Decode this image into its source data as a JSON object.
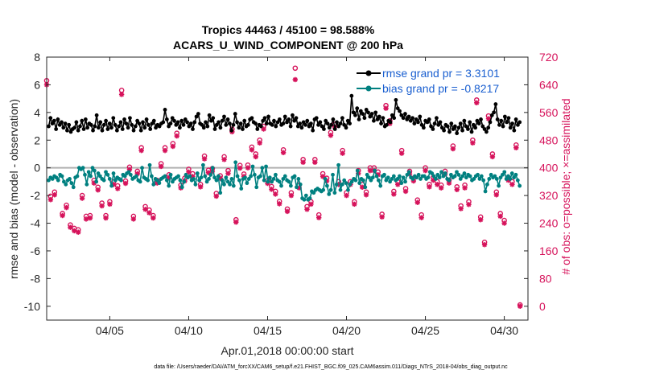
{
  "chart_data": {
    "type": "line",
    "title_line1": "Tropics 44463 / 45100 = 98.588%",
    "title_line2": "ACARS_U_WIND_COMPONENT @ 200 hPa",
    "xlabel": "Apr.01,2018 00:00:00 start",
    "ylabel_left": "rmse and bias (model - observation)",
    "ylabel_right": "# of obs: o=possible; ×=assimilated",
    "footer": "data file: /Users/raeder/DAI/ATM_forcXX/CAM6_setup/f.e21.FHIST_BGC.f09_025.CAM6assim.011/Diags_NTrS_2018-04/obs_diag_output.nc",
    "xlim": [
      1,
      31.5
    ],
    "ylim_left": [
      -11,
      8
    ],
    "ylim_right": [
      -40,
      720
    ],
    "xticks": [
      5,
      10,
      15,
      20,
      25,
      30
    ],
    "xtick_labels": [
      "04/05",
      "04/10",
      "04/15",
      "04/20",
      "04/25",
      "04/30"
    ],
    "yticks_left": [
      -10,
      -8,
      -6,
      -4,
      -2,
      0,
      2,
      4,
      6,
      8
    ],
    "yticks_right": [
      0,
      80,
      160,
      240,
      320,
      400,
      480,
      560,
      640,
      720
    ],
    "colors": {
      "rmse": "#000000",
      "bias": "#008080",
      "obs": "#d6135b",
      "zero_line": "#b0b0b0",
      "legend_text": "#1a5fd0"
    },
    "legend": [
      {
        "name": "rmse grand pr = 3.3101",
        "series": "rmse"
      },
      {
        "name": "bias grand pr = -0.8217",
        "series": "bias"
      }
    ],
    "rmse": [
      3.0,
      3.6,
      3.2,
      3.4,
      2.8,
      3.5,
      3.1,
      3.3,
      2.9,
      3.2,
      2.7,
      3.1,
      2.6,
      2.8,
      2.9,
      3.3,
      2.7,
      3.0,
      3.4,
      2.8,
      3.5,
      2.9,
      3.2,
      3.1,
      2.7,
      3.0,
      3.8,
      2.9,
      3.3,
      2.7,
      3.1,
      3.4,
      2.8,
      3.2,
      2.9,
      3.6,
      3.1,
      2.7,
      3.0,
      3.3,
      2.8,
      3.5,
      3.2,
      2.9,
      3.6,
      3.1,
      2.7,
      3.0,
      3.4,
      3.2,
      2.7,
      3.3,
      2.9,
      3.5,
      3.1,
      2.8,
      3.2,
      3.4,
      2.9,
      3.1,
      3.0,
      3.2,
      3.3,
      4.2,
      3.5,
      3.0,
      3.2,
      3.6,
      3.4,
      3.1,
      3.3,
      2.9,
      3.4,
      3.1,
      3.5,
      3.3,
      3.0,
      3.2,
      2.8,
      3.3,
      3.7,
      3.9,
      3.2,
      3.1,
      2.9,
      3.3,
      3.0,
      3.8,
      3.4,
      3.6,
      2.8,
      3.1,
      3.3,
      2.9,
      3.4,
      3.7,
      3.1,
      3.5,
      3.2,
      2.7,
      3.1,
      3.9,
      3.3,
      2.9,
      3.2,
      2.8,
      3.4,
      3.0,
      3.1,
      3.5,
      3.6,
      3.3,
      3.2,
      2.8,
      3.1,
      3.0,
      3.4,
      3.6,
      3.2,
      3.7,
      3.2,
      3.1,
      3.4,
      3.0,
      3.3,
      3.5,
      3.1,
      3.2,
      3.7,
      3.3,
      3.5,
      3.0,
      3.8,
      3.4,
      3.6,
      3.0,
      3.2,
      2.9,
      3.3,
      3.1,
      3.4,
      3.0,
      3.2,
      2.7,
      3.5,
      3.6,
      3.1,
      3.3,
      3.0,
      2.8,
      3.4,
      3.2,
      2.9,
      3.1,
      3.5,
      2.8,
      3.3,
      3.0,
      3.2,
      3.6,
      3.1,
      2.9,
      3.4,
      3.2,
      5.2,
      4.0,
      3.8,
      4.3,
      3.5,
      4.1,
      3.9,
      3.6,
      4.2,
      4.0,
      3.7,
      3.9,
      3.4,
      4.0,
      3.5,
      3.7,
      3.2,
      3.6,
      3.0,
      3.1,
      3.4,
      3.3,
      3.8,
      3.6,
      4.9,
      4.3,
      4.1,
      3.8,
      3.6,
      3.9,
      3.5,
      3.7,
      3.4,
      3.6,
      3.2,
      3.5,
      3.3,
      3.7,
      3.1,
      2.9,
      3.4,
      3.3,
      3.5,
      3.0,
      2.8,
      3.2,
      3.6,
      3.1,
      3.3,
      2.9,
      2.7,
      3.1,
      3.0,
      2.6,
      3.2,
      2.8,
      3.0,
      2.5,
      2.9,
      3.2,
      2.7,
      3.4,
      3.0,
      2.8,
      3.3,
      2.6,
      3.1,
      2.9,
      3.4,
      3.2,
      3.5,
      3.0,
      2.8,
      2.6,
      2.9,
      3.3,
      3.8,
      4.0,
      4.6,
      3.5,
      3.1,
      3.4,
      3.0,
      3.7,
      3.3,
      3.6,
      2.9,
      3.2,
      2.7,
      3.5,
      3.1,
      3.3
    ],
    "bias": [
      -0.9,
      -0.7,
      -0.8,
      -0.6,
      -0.7,
      -0.9,
      -0.5,
      -0.6,
      -1.0,
      -1.2,
      -0.9,
      -0.8,
      -1.1,
      -1.4,
      -0.7,
      -0.6,
      0.0,
      -0.1,
      0.0,
      -0.5,
      -1.2,
      -0.3,
      -0.6,
      0.0,
      -0.2,
      -1.0,
      -0.4,
      -0.6,
      -0.8,
      -0.9,
      -0.3,
      -0.5,
      -0.8,
      -1.3,
      -0.4,
      -0.9,
      -0.7,
      -0.8,
      -0.9,
      -0.5,
      -0.6,
      -0.4,
      -0.3,
      -0.5,
      -0.8,
      -0.7,
      -0.6,
      -0.9,
      -1.0,
      0.0,
      -0.7,
      -0.8,
      -0.9,
      0.2,
      -0.6,
      -1.2,
      -0.8,
      -0.9,
      -1.1,
      -0.8,
      -0.7,
      -0.6,
      -0.9,
      -1.3,
      -0.5,
      -1.0,
      -0.8,
      -0.7,
      -0.6,
      -0.9,
      -1.4,
      -1.0,
      -0.5,
      -0.7,
      -0.6,
      -0.9,
      -0.8,
      -1.2,
      -0.4,
      -0.9,
      -0.7,
      0.2,
      -0.6,
      -1.0,
      -0.8,
      -0.5,
      0.0,
      -0.7,
      -0.9,
      -0.6,
      -1.8,
      -0.9,
      -1.2,
      -0.7,
      -1.0,
      -1.2,
      -0.8,
      -1.3,
      0.4,
      -0.6,
      -0.9,
      -1.5,
      -0.8,
      -0.7,
      -1.1,
      -0.8,
      -0.6,
      0.1,
      -0.5,
      -1.4,
      -0.7,
      -0.6,
      0.0,
      -0.9,
      0.1,
      -1.0,
      -0.7,
      -1.0,
      -0.8,
      -0.5,
      -0.9,
      -1.0,
      -1.3,
      -0.8,
      -0.6,
      -0.9,
      -1.0,
      -1.3,
      -0.7,
      -0.6,
      -1.4,
      -0.8,
      -1.2,
      -2.2,
      -2.3,
      -2.0,
      -2.3,
      -2.2,
      -1.7,
      -1.8,
      -1.6,
      -1.5,
      -1.6,
      -1.7,
      -1.6,
      -0.8,
      -1.3,
      -1.9,
      -1.6,
      -0.5,
      -1.8,
      -1.2,
      0.2,
      -1.6,
      -1.2,
      -0.9,
      -1.1,
      -1.6,
      -1.2,
      -1.0,
      -0.8,
      -0.9,
      -0.2,
      -1.1,
      -0.8,
      -0.9,
      -1.4,
      -0.5,
      -0.7,
      -0.9,
      -0.7,
      -0.2,
      -0.6,
      -0.9,
      -1.3,
      -0.6,
      -0.5,
      -0.9,
      -0.7,
      -1.0,
      -0.8,
      -0.6,
      -0.9,
      -0.8,
      -0.6,
      -1.1,
      -0.7,
      -1.0,
      -0.5,
      -0.3,
      -0.7,
      -0.8,
      -0.6,
      -0.7,
      -0.5,
      -0.8,
      -0.6,
      -0.6,
      -0.8,
      -0.7,
      -0.3,
      -0.4,
      -0.6,
      -0.8,
      -0.5,
      -0.7,
      -0.3,
      -0.6,
      -0.4,
      -0.8,
      -0.9,
      -0.5,
      -0.7,
      -0.6,
      -0.3,
      -0.5,
      -0.8,
      -0.6,
      -0.4,
      -0.7,
      -0.5,
      -0.6,
      -0.9,
      -0.8,
      -0.6,
      -0.5,
      -0.8,
      -0.6,
      -0.9,
      -1.7,
      -1.2,
      -0.8,
      -0.5,
      -0.7,
      -0.6,
      -0.8,
      -1.3,
      -0.7,
      -0.5,
      -0.3,
      -0.8,
      -0.6,
      -0.8,
      -0.4,
      -0.7,
      -0.5,
      -0.9,
      -1.3
    ],
    "obs_possible": [
      [
        1.0,
        652
      ],
      [
        1.25,
        318
      ],
      [
        1.5,
        330
      ],
      [
        2.0,
        268
      ],
      [
        2.25,
        292
      ],
      [
        2.5,
        235
      ],
      [
        2.75,
        225
      ],
      [
        3.0,
        221
      ],
      [
        3.25,
        320
      ],
      [
        3.5,
        260
      ],
      [
        3.75,
        262
      ],
      [
        4.0,
        364
      ],
      [
        4.25,
        344
      ],
      [
        4.5,
        298
      ],
      [
        4.75,
        262
      ],
      [
        5.0,
        302
      ],
      [
        5.25,
        360
      ],
      [
        5.5,
        348
      ],
      [
        5.75,
        624
      ],
      [
        6.0,
        362
      ],
      [
        6.25,
        402
      ],
      [
        6.5,
        260
      ],
      [
        6.75,
        390
      ],
      [
        7.0,
        458
      ],
      [
        7.25,
        288
      ],
      [
        7.5,
        278
      ],
      [
        7.75,
        262
      ],
      [
        8.0,
        364
      ],
      [
        8.25,
        412
      ],
      [
        8.5,
        458
      ],
      [
        8.75,
        380
      ],
      [
        9.0,
        470
      ],
      [
        9.25,
        500
      ],
      [
        9.5,
        350
      ],
      [
        9.75,
        370
      ],
      [
        10.0,
        396
      ],
      [
        10.25,
        383
      ],
      [
        10.75,
        352
      ],
      [
        11.0,
        434
      ],
      [
        11.25,
        393
      ],
      [
        11.5,
        398
      ],
      [
        11.75,
        326
      ],
      [
        12.0,
        377
      ],
      [
        12.25,
        432
      ],
      [
        12.5,
        392
      ],
      [
        12.75,
        512
      ],
      [
        13.0,
        250
      ],
      [
        13.25,
        407
      ],
      [
        13.5,
        382
      ],
      [
        13.75,
        408
      ],
      [
        14.0,
        460
      ],
      [
        14.25,
        440
      ],
      [
        14.5,
        480
      ],
      [
        14.75,
        520
      ],
      [
        15.0,
        363
      ],
      [
        15.25,
        346
      ],
      [
        15.5,
        332
      ],
      [
        15.75,
        303
      ],
      [
        16.0,
        452
      ],
      [
        16.25,
        281
      ],
      [
        16.5,
        328
      ],
      [
        16.75,
        688
      ],
      [
        17.0,
        350
      ],
      [
        17.25,
        424
      ],
      [
        17.5,
        288
      ],
      [
        17.75,
        302
      ],
      [
        18.0,
        424
      ],
      [
        18.25,
        264
      ],
      [
        18.5,
        383
      ],
      [
        18.75,
        370
      ],
      [
        19.0,
        502
      ],
      [
        19.25,
        526
      ],
      [
        19.5,
        360
      ],
      [
        19.75,
        450
      ],
      [
        20.0,
        328
      ],
      [
        20.25,
        360
      ],
      [
        20.5,
        302
      ],
      [
        20.75,
        392
      ],
      [
        21.0,
        352
      ],
      [
        21.25,
        330
      ],
      [
        21.5,
        400
      ],
      [
        21.75,
        400
      ],
      [
        22.0,
        388
      ],
      [
        22.25,
        266
      ],
      [
        22.5,
        580
      ],
      [
        22.75,
        536
      ],
      [
        23.0,
        332
      ],
      [
        23.25,
        360
      ],
      [
        23.5,
        450
      ],
      [
        23.75,
        340
      ],
      [
        24.0,
        390
      ],
      [
        24.25,
        370
      ],
      [
        24.5,
        307
      ],
      [
        24.75,
        264
      ],
      [
        25.0,
        400
      ],
      [
        25.25,
        352
      ],
      [
        25.5,
        372
      ],
      [
        25.75,
        360
      ],
      [
        26.0,
        350
      ],
      [
        26.25,
        390
      ],
      [
        26.5,
        364
      ],
      [
        26.75,
        463
      ],
      [
        27.0,
        345
      ],
      [
        27.25,
        290
      ],
      [
        27.5,
        350
      ],
      [
        27.75,
        302
      ],
      [
        28.0,
        480
      ],
      [
        28.25,
        596
      ],
      [
        28.5,
        258
      ],
      [
        28.75,
        185
      ],
      [
        29.0,
        550
      ],
      [
        29.25,
        440
      ],
      [
        29.5,
        330
      ],
      [
        29.75,
        268
      ],
      [
        30.0,
        248
      ],
      [
        30.25,
        372
      ],
      [
        30.5,
        360
      ],
      [
        30.75,
        466
      ],
      [
        31.0,
        4
      ]
    ],
    "obs_assimilated": [
      [
        1.0,
        640
      ],
      [
        1.25,
        308
      ],
      [
        1.5,
        322
      ],
      [
        2.0,
        262
      ],
      [
        2.25,
        285
      ],
      [
        2.5,
        228
      ],
      [
        2.75,
        218
      ],
      [
        3.0,
        214
      ],
      [
        3.25,
        312
      ],
      [
        3.5,
        252
      ],
      [
        3.75,
        255
      ],
      [
        4.0,
        356
      ],
      [
        4.25,
        336
      ],
      [
        4.5,
        290
      ],
      [
        4.75,
        255
      ],
      [
        5.0,
        295
      ],
      [
        5.25,
        352
      ],
      [
        5.5,
        340
      ],
      [
        5.75,
        612
      ],
      [
        6.0,
        355
      ],
      [
        6.25,
        395
      ],
      [
        6.5,
        252
      ],
      [
        6.75,
        383
      ],
      [
        7.0,
        450
      ],
      [
        7.25,
        280
      ],
      [
        7.5,
        270
      ],
      [
        7.75,
        255
      ],
      [
        8.0,
        356
      ],
      [
        8.25,
        404
      ],
      [
        8.5,
        450
      ],
      [
        8.75,
        372
      ],
      [
        9.0,
        462
      ],
      [
        9.25,
        492
      ],
      [
        9.5,
        342
      ],
      [
        9.75,
        362
      ],
      [
        10.0,
        388
      ],
      [
        10.25,
        375
      ],
      [
        10.75,
        345
      ],
      [
        11.0,
        426
      ],
      [
        11.25,
        386
      ],
      [
        11.5,
        390
      ],
      [
        11.75,
        318
      ],
      [
        12.0,
        370
      ],
      [
        12.25,
        424
      ],
      [
        12.5,
        384
      ],
      [
        12.75,
        504
      ],
      [
        13.0,
        243
      ],
      [
        13.25,
        399
      ],
      [
        13.5,
        375
      ],
      [
        13.75,
        400
      ],
      [
        14.0,
        452
      ],
      [
        14.25,
        432
      ],
      [
        14.5,
        472
      ],
      [
        14.75,
        512
      ],
      [
        15.0,
        355
      ],
      [
        15.25,
        338
      ],
      [
        15.5,
        324
      ],
      [
        15.75,
        296
      ],
      [
        16.0,
        444
      ],
      [
        16.25,
        274
      ],
      [
        16.5,
        320
      ],
      [
        16.75,
        655
      ],
      [
        17.0,
        342
      ],
      [
        17.25,
        416
      ],
      [
        17.5,
        280
      ],
      [
        17.75,
        295
      ],
      [
        18.0,
        416
      ],
      [
        18.25,
        256
      ],
      [
        18.5,
        375
      ],
      [
        18.75,
        362
      ],
      [
        19.0,
        494
      ],
      [
        19.25,
        518
      ],
      [
        19.5,
        352
      ],
      [
        19.75,
        442
      ],
      [
        20.0,
        320
      ],
      [
        20.25,
        352
      ],
      [
        20.5,
        295
      ],
      [
        20.75,
        384
      ],
      [
        21.0,
        344
      ],
      [
        21.25,
        322
      ],
      [
        21.5,
        392
      ],
      [
        21.75,
        392
      ],
      [
        22.0,
        380
      ],
      [
        22.25,
        258
      ],
      [
        22.5,
        572
      ],
      [
        22.75,
        528
      ],
      [
        23.0,
        324
      ],
      [
        23.25,
        352
      ],
      [
        23.5,
        442
      ],
      [
        23.75,
        332
      ],
      [
        24.0,
        382
      ],
      [
        24.25,
        362
      ],
      [
        24.5,
        300
      ],
      [
        24.75,
        256
      ],
      [
        25.0,
        392
      ],
      [
        25.25,
        345
      ],
      [
        25.5,
        364
      ],
      [
        25.75,
        352
      ],
      [
        26.0,
        342
      ],
      [
        26.25,
        382
      ],
      [
        26.5,
        356
      ],
      [
        26.75,
        455
      ],
      [
        27.0,
        337
      ],
      [
        27.25,
        282
      ],
      [
        27.5,
        342
      ],
      [
        27.75,
        294
      ],
      [
        28.0,
        472
      ],
      [
        28.25,
        588
      ],
      [
        28.5,
        250
      ],
      [
        28.75,
        178
      ],
      [
        29.0,
        542
      ],
      [
        29.25,
        432
      ],
      [
        29.5,
        322
      ],
      [
        29.75,
        260
      ],
      [
        30.0,
        240
      ],
      [
        30.25,
        364
      ],
      [
        30.5,
        352
      ],
      [
        30.75,
        458
      ],
      [
        31.0,
        0
      ]
    ]
  }
}
